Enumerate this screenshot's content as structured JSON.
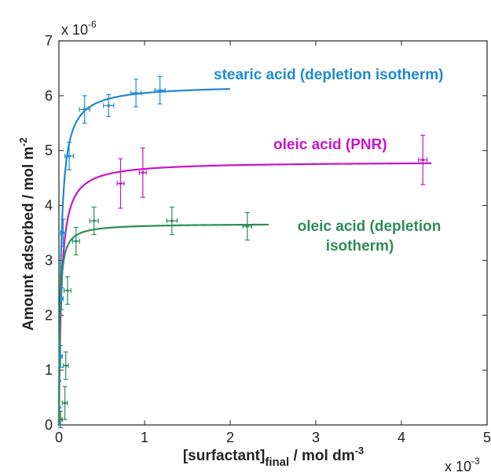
{
  "chart_data": {
    "type": "scatter",
    "ylabel": "Amount adsorbed / mol m",
    "ylabel_sup": "-2",
    "xlabel_main": "[surfactant]",
    "xlabel_sub": "final",
    "xlabel_rest": " / mol dm",
    "xlabel_sup": "-3",
    "x_multiplier_base": "x 10",
    "x_multiplier_exp": "-3",
    "y_multiplier_base": "x 10",
    "y_multiplier_exp": "-6",
    "xlim": [
      0,
      5
    ],
    "ylim": [
      0,
      7
    ],
    "x_ticks": [
      0,
      1,
      2,
      3,
      4,
      5
    ],
    "y_ticks": [
      0,
      1,
      2,
      3,
      4,
      5,
      6,
      7
    ],
    "grid": false,
    "series": [
      {
        "name": "stearic acid (depletion isotherm)",
        "color": "#1f8ad0",
        "fit": {
          "model": "langmuir",
          "qmax": 6.2,
          "K": 40,
          "x_end": 2.0
        },
        "points": [
          {
            "x": 0.0,
            "y": 0.0,
            "xerr": 0.0,
            "yerr": 0.0
          },
          {
            "x": 0.01,
            "y": 0.32,
            "xerr": 0.0,
            "yerr": 0.0
          },
          {
            "x": 0.01,
            "y": 0.8,
            "xerr": 0.0,
            "yerr": 0.0
          },
          {
            "x": 0.02,
            "y": 1.25,
            "xerr": 0.02,
            "yerr": 0.2
          },
          {
            "x": 0.03,
            "y": 2.3,
            "xerr": 0.02,
            "yerr": 0.2
          },
          {
            "x": 0.05,
            "y": 3.5,
            "xerr": 0.03,
            "yerr": 0.25
          },
          {
            "x": 0.12,
            "y": 4.9,
            "xerr": 0.05,
            "yerr": 0.25
          },
          {
            "x": 0.3,
            "y": 5.75,
            "xerr": 0.06,
            "yerr": 0.25
          },
          {
            "x": 0.58,
            "y": 5.82,
            "xerr": 0.06,
            "yerr": 0.2
          },
          {
            "x": 0.9,
            "y": 6.05,
            "xerr": 0.06,
            "yerr": 0.25
          },
          {
            "x": 1.18,
            "y": 6.1,
            "xerr": 0.06,
            "yerr": 0.25
          }
        ]
      },
      {
        "name": "oleic acid (PNR)",
        "color": "#c814c8",
        "fit": {
          "model": "langmuir",
          "qmax": 4.8,
          "K": 35,
          "x_end": 4.35
        },
        "points": [
          {
            "x": 0.72,
            "y": 4.4,
            "xerr": 0.04,
            "yerr": 0.45
          },
          {
            "x": 0.98,
            "y": 4.6,
            "xerr": 0.04,
            "yerr": 0.45
          },
          {
            "x": 4.25,
            "y": 4.83,
            "xerr": 0.05,
            "yerr": 0.45
          }
        ]
      },
      {
        "name": "oleic acid (depletion isotherm)",
        "name_line1": "oleic acid (depletion",
        "name_line2": "isotherm)",
        "color": "#2e8b57",
        "fit": {
          "model": "langmuir",
          "qmax": 3.67,
          "K": 80,
          "x_end": 2.45
        },
        "points": [
          {
            "x": 0.02,
            "y": 0.1,
            "xerr": 0.02,
            "yerr": 0.15
          },
          {
            "x": 0.07,
            "y": 0.4,
            "xerr": 0.03,
            "yerr": 0.3
          },
          {
            "x": 0.08,
            "y": 1.08,
            "xerr": 0.03,
            "yerr": 0.25
          },
          {
            "x": 0.1,
            "y": 2.45,
            "xerr": 0.04,
            "yerr": 0.25
          },
          {
            "x": 0.2,
            "y": 3.35,
            "xerr": 0.04,
            "yerr": 0.25
          },
          {
            "x": 0.41,
            "y": 3.72,
            "xerr": 0.05,
            "yerr": 0.25
          },
          {
            "x": 1.32,
            "y": 3.72,
            "xerr": 0.06,
            "yerr": 0.25
          },
          {
            "x": 2.2,
            "y": 3.62,
            "xerr": 0.05,
            "yerr": 0.25
          }
        ]
      }
    ]
  }
}
